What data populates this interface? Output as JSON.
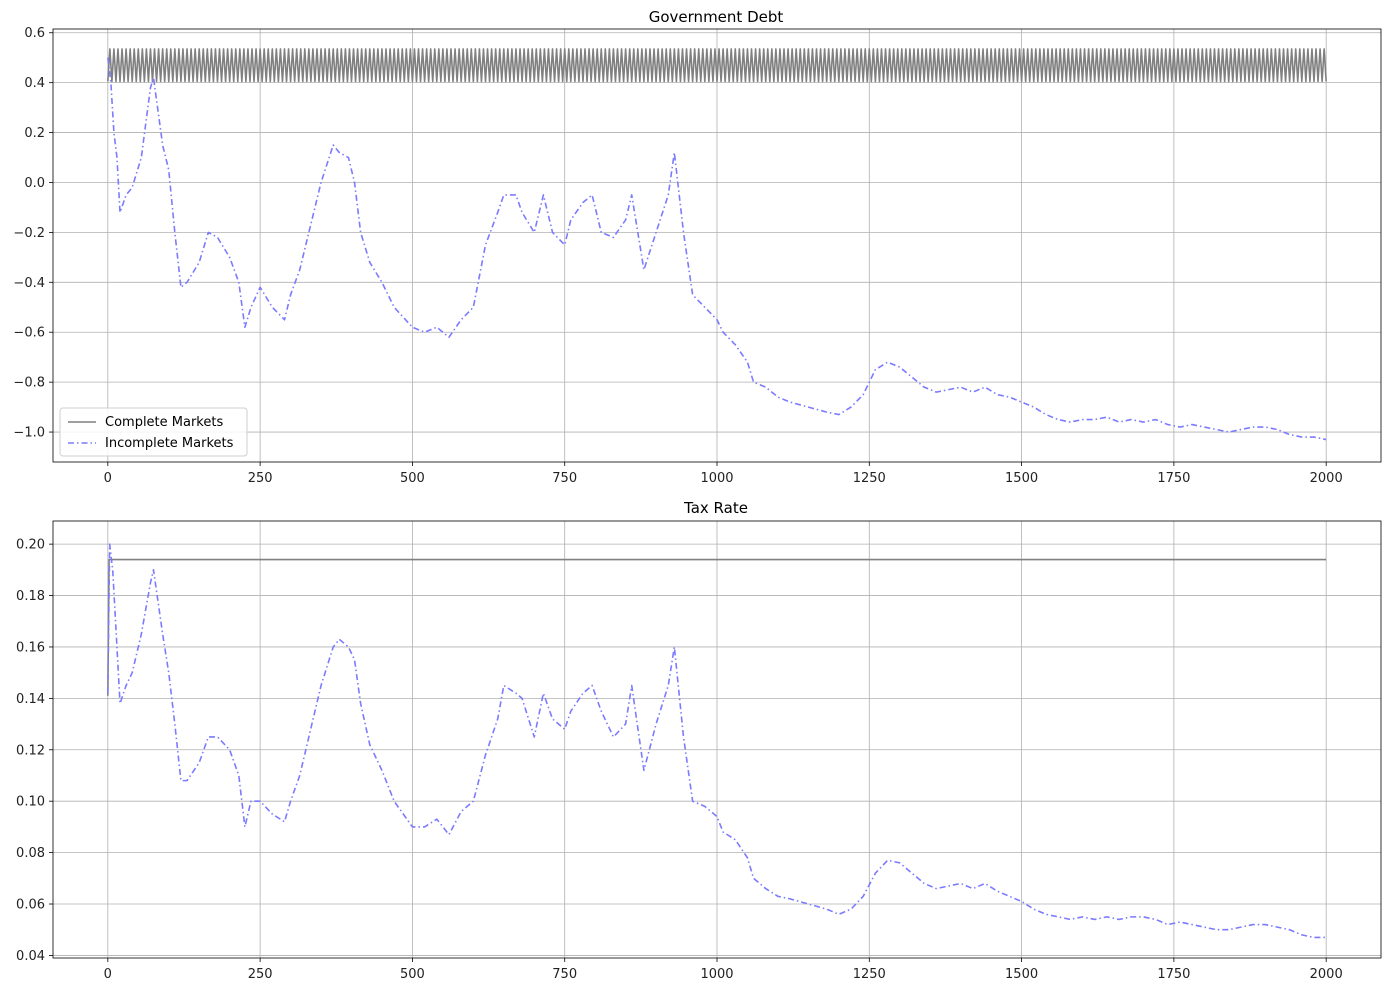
{
  "chart_data": [
    {
      "type": "line",
      "title": "Government Debt",
      "xlabel": "",
      "ylabel": "",
      "xlim": [
        -90,
        2090
      ],
      "ylim": [
        -1.12,
        0.615
      ],
      "xticks": [
        0,
        250,
        500,
        750,
        1000,
        1250,
        1500,
        1750,
        2000
      ],
      "yticks": [
        -1.0,
        -0.8,
        -0.6,
        -0.4,
        -0.2,
        0.0,
        0.2,
        0.4,
        0.6
      ],
      "xtick_labels": [
        "0",
        "250",
        "500",
        "750",
        "1000",
        "1250",
        "1500",
        "1750",
        "2000"
      ],
      "ytick_labels": [
        "−1.0",
        "−0.8",
        "−0.6",
        "−0.4",
        "−0.2",
        "0.0",
        "0.2",
        "0.4",
        "0.6"
      ],
      "grid": true,
      "legend": {
        "position": "lower-left",
        "entries": [
          "Complete Markets",
          "Incomplete Markets"
        ]
      },
      "series": [
        {
          "name": "Complete Markets",
          "style": "solid",
          "color": "#808080",
          "note_values": "switches between two levels",
          "levels": [
            0.405,
            0.535
          ],
          "x_range": [
            0,
            2000
          ]
        },
        {
          "name": "Incomplete Markets",
          "style": "dashdot",
          "color": "#7b7bff",
          "x": [
            0,
            5,
            10,
            15,
            20,
            30,
            40,
            55,
            70,
            75,
            90,
            100,
            110,
            120,
            130,
            150,
            165,
            180,
            200,
            215,
            225,
            235,
            250,
            270,
            290,
            300,
            315,
            330,
            350,
            370,
            380,
            395,
            405,
            415,
            430,
            450,
            470,
            500,
            520,
            540,
            560,
            580,
            600,
            620,
            640,
            650,
            670,
            680,
            700,
            715,
            730,
            750,
            760,
            780,
            795,
            810,
            830,
            850,
            860,
            880,
            900,
            920,
            930,
            945,
            960,
            980,
            1000,
            1010,
            1030,
            1050,
            1060,
            1080,
            1100,
            1120,
            1150,
            1180,
            1200,
            1220,
            1240,
            1260,
            1280,
            1300,
            1320,
            1340,
            1360,
            1380,
            1400,
            1420,
            1440,
            1460,
            1480,
            1500,
            1520,
            1540,
            1560,
            1580,
            1600,
            1620,
            1640,
            1660,
            1680,
            1700,
            1720,
            1740,
            1760,
            1780,
            1800,
            1820,
            1840,
            1860,
            1880,
            1900,
            1920,
            1940,
            1960,
            1980,
            2000
          ],
          "y": [
            0.5,
            0.4,
            0.2,
            0.1,
            -0.12,
            -0.05,
            -0.02,
            0.1,
            0.38,
            0.42,
            0.15,
            0.05,
            -0.2,
            -0.42,
            -0.4,
            -0.32,
            -0.2,
            -0.22,
            -0.3,
            -0.4,
            -0.58,
            -0.5,
            -0.42,
            -0.5,
            -0.55,
            -0.45,
            -0.35,
            -0.2,
            0.0,
            0.15,
            0.12,
            0.1,
            0.0,
            -0.2,
            -0.32,
            -0.4,
            -0.5,
            -0.58,
            -0.6,
            -0.58,
            -0.62,
            -0.55,
            -0.5,
            -0.25,
            -0.12,
            -0.05,
            -0.05,
            -0.12,
            -0.2,
            -0.05,
            -0.2,
            -0.25,
            -0.15,
            -0.08,
            -0.05,
            -0.2,
            -0.22,
            -0.15,
            -0.05,
            -0.35,
            -0.2,
            -0.05,
            0.12,
            -0.2,
            -0.45,
            -0.5,
            -0.55,
            -0.6,
            -0.65,
            -0.72,
            -0.8,
            -0.82,
            -0.86,
            -0.88,
            -0.9,
            -0.92,
            -0.93,
            -0.9,
            -0.85,
            -0.75,
            -0.72,
            -0.74,
            -0.78,
            -0.82,
            -0.84,
            -0.83,
            -0.82,
            -0.84,
            -0.82,
            -0.85,
            -0.86,
            -0.88,
            -0.9,
            -0.93,
            -0.95,
            -0.96,
            -0.95,
            -0.95,
            -0.94,
            -0.96,
            -0.95,
            -0.96,
            -0.95,
            -0.97,
            -0.98,
            -0.97,
            -0.98,
            -0.99,
            -1.0,
            -0.99,
            -0.98,
            -0.98,
            -0.99,
            -1.01,
            -1.02,
            -1.02,
            -1.03
          ]
        }
      ]
    },
    {
      "type": "line",
      "title": "Tax Rate",
      "xlabel": "",
      "ylabel": "",
      "xlim": [
        -90,
        2090
      ],
      "ylim": [
        0.039,
        0.209
      ],
      "xticks": [
        0,
        250,
        500,
        750,
        1000,
        1250,
        1500,
        1750,
        2000
      ],
      "yticks": [
        0.04,
        0.06,
        0.08,
        0.1,
        0.12,
        0.14,
        0.16,
        0.18,
        0.2
      ],
      "xtick_labels": [
        "0",
        "250",
        "500",
        "750",
        "1000",
        "1250",
        "1500",
        "1750",
        "2000"
      ],
      "ytick_labels": [
        "0.04",
        "0.06",
        "0.08",
        "0.10",
        "0.12",
        "0.14",
        "0.16",
        "0.18",
        "0.20"
      ],
      "grid": true,
      "series": [
        {
          "name": "Complete Markets",
          "style": "solid",
          "color": "#808080",
          "x": [
            0,
            2,
            2000
          ],
          "y": [
            0.141,
            0.194,
            0.194
          ]
        },
        {
          "name": "Incomplete Markets",
          "style": "dashdot",
          "color": "#7b7bff",
          "x": [
            0,
            3,
            8,
            15,
            20,
            30,
            40,
            55,
            70,
            75,
            90,
            100,
            110,
            120,
            130,
            150,
            165,
            180,
            200,
            215,
            225,
            235,
            250,
            270,
            290,
            300,
            315,
            330,
            350,
            370,
            380,
            395,
            405,
            415,
            430,
            450,
            470,
            500,
            520,
            540,
            560,
            580,
            600,
            620,
            640,
            650,
            670,
            680,
            700,
            715,
            730,
            750,
            760,
            780,
            795,
            810,
            830,
            850,
            860,
            880,
            900,
            920,
            930,
            945,
            960,
            980,
            1000,
            1010,
            1030,
            1050,
            1060,
            1080,
            1100,
            1120,
            1150,
            1180,
            1200,
            1220,
            1240,
            1260,
            1280,
            1300,
            1320,
            1340,
            1360,
            1380,
            1400,
            1420,
            1440,
            1460,
            1480,
            1500,
            1520,
            1540,
            1560,
            1580,
            1600,
            1620,
            1640,
            1660,
            1680,
            1700,
            1720,
            1740,
            1760,
            1780,
            1800,
            1820,
            1840,
            1860,
            1880,
            1900,
            1920,
            1940,
            1960,
            1980,
            2000
          ],
          "y": [
            0.142,
            0.2,
            0.19,
            0.16,
            0.138,
            0.145,
            0.15,
            0.165,
            0.185,
            0.19,
            0.165,
            0.15,
            0.13,
            0.108,
            0.108,
            0.115,
            0.125,
            0.125,
            0.12,
            0.11,
            0.09,
            0.1,
            0.1,
            0.095,
            0.092,
            0.1,
            0.11,
            0.125,
            0.145,
            0.16,
            0.163,
            0.16,
            0.155,
            0.138,
            0.122,
            0.112,
            0.1,
            0.09,
            0.09,
            0.093,
            0.087,
            0.096,
            0.1,
            0.118,
            0.132,
            0.145,
            0.142,
            0.14,
            0.125,
            0.142,
            0.132,
            0.128,
            0.135,
            0.142,
            0.145,
            0.135,
            0.125,
            0.13,
            0.145,
            0.112,
            0.13,
            0.145,
            0.16,
            0.125,
            0.1,
            0.098,
            0.094,
            0.088,
            0.085,
            0.078,
            0.07,
            0.066,
            0.063,
            0.062,
            0.06,
            0.058,
            0.056,
            0.058,
            0.063,
            0.072,
            0.077,
            0.076,
            0.072,
            0.068,
            0.066,
            0.067,
            0.068,
            0.066,
            0.068,
            0.065,
            0.063,
            0.061,
            0.058,
            0.056,
            0.055,
            0.054,
            0.055,
            0.054,
            0.055,
            0.054,
            0.055,
            0.055,
            0.054,
            0.052,
            0.053,
            0.052,
            0.051,
            0.05,
            0.05,
            0.051,
            0.052,
            0.052,
            0.051,
            0.05,
            0.048,
            0.047,
            0.047
          ]
        }
      ]
    }
  ]
}
